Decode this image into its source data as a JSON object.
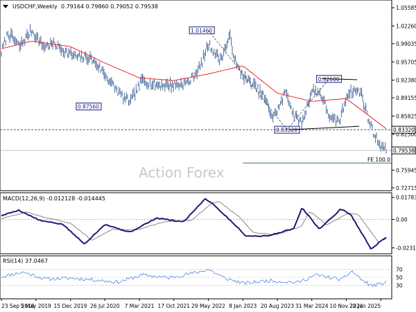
{
  "header": {
    "symbol_label": "USDCHF,Weekly",
    "ohlc_text": "0.79164 0.79860 0.79052 0.79538"
  },
  "watermark": "Action Forex",
  "colors": {
    "bars": "#4a6a9a",
    "ma": "#e8282a",
    "macd_line": "#1a1a7a",
    "macd_signal": "#888888",
    "rsi": "#4a86e8",
    "annotation": "#1a1a7a",
    "fib": "#3b6b6b"
  },
  "chart_data": [
    {
      "type": "line",
      "panel": "price",
      "title": "USDCHF,Weekly",
      "y_ticks": [
        "1.05585",
        "1.02260",
        "0.99035",
        "0.95705",
        "0.92380",
        "0.89155",
        "0.85825",
        "0.82500",
        "0.79595",
        "0.75945",
        "0.72715"
      ],
      "ylim": [
        0.7245,
        1.0675
      ],
      "current_price": "0.79538",
      "x_ticks": [
        "23 Sep 2018",
        "5 May 2019",
        "15 Dec 2019",
        "26 Jul 2020",
        "7 Mar 2021",
        "17 Oct 2021",
        "29 May 2022",
        "8 Jan 2023",
        "20 Aug 2023",
        "31 Mar 2024",
        "10 Nov 2024",
        "22 Jun 2025"
      ],
      "series": [
        {
          "style": "bars",
          "x": [
            "2018-09-23",
            "2018-11-04",
            "2019-01-20",
            "2019-04-07",
            "2019-06-23",
            "2019-09-01",
            "2019-11-17",
            "2020-02-02",
            "2020-04-19",
            "2020-06-28",
            "2020-09-13",
            "2020-11-29",
            "2021-01-10",
            "2021-03-28",
            "2021-06-06",
            "2021-08-22",
            "2021-11-07",
            "2022-01-23",
            "2022-04-10",
            "2022-05-29",
            "2022-08-14",
            "2022-10-16",
            "2022-11-27",
            "2023-01-29",
            "2023-03-19",
            "2023-05-21",
            "2023-07-23",
            "2023-09-10",
            "2023-10-15",
            "2023-12-03",
            "2024-01-28",
            "2024-03-31",
            "2024-05-26",
            "2024-08-04",
            "2024-09-29",
            "2024-11-17",
            "2025-01-05",
            "2025-02-16",
            "2025-03-30",
            "2025-05-18",
            "2025-06-22",
            "2025-07-27"
          ],
          "values": [
            0.975,
            1.01,
            0.985,
            1.015,
            0.985,
            0.99,
            0.975,
            0.965,
            0.965,
            0.945,
            0.915,
            0.89,
            0.885,
            0.925,
            0.915,
            0.915,
            0.915,
            0.92,
            0.95,
            0.99,
            0.96,
            1.003,
            0.95,
            0.925,
            0.915,
            0.895,
            0.855,
            0.88,
            0.905,
            0.86,
            0.845,
            0.905,
            0.9,
            0.85,
            0.85,
            0.9,
            0.905,
            0.9,
            0.855,
            0.82,
            0.805,
            0.795
          ]
        },
        {
          "style": "line",
          "x": [
            "2018-09-23",
            "2019-04-07",
            "2019-12-15",
            "2020-07-26",
            "2021-03-07",
            "2021-10-17",
            "2022-05-29",
            "2023-01-08",
            "2023-08-20",
            "2024-03-31",
            "2024-11-10",
            "2025-07-27"
          ],
          "values": [
            0.981,
            0.995,
            0.985,
            0.955,
            0.928,
            0.923,
            0.935,
            0.95,
            0.9,
            0.885,
            0.89,
            0.835
          ]
        }
      ],
      "annotations": [
        {
          "type": "price_label",
          "text": "1.01460",
          "x": "2022-04-17",
          "y": 1.0146
        },
        {
          "type": "price_label",
          "text": "0.87560",
          "x": "2020-04-12",
          "y": 0.8756
        },
        {
          "type": "price_label",
          "text": "0.83320",
          "x": "2023-10-22",
          "y": 0.8332
        },
        {
          "type": "price_label",
          "text": "0.92600",
          "x": "2024-07-21",
          "y": 0.926
        },
        {
          "type": "horizontal_level",
          "text": "0.83320",
          "y": 0.8332
        },
        {
          "type": "fib_label",
          "text": "FE 100.0",
          "y": 0.7725
        }
      ]
    },
    {
      "type": "line",
      "panel": "macd",
      "title": "MACD(12,26,9) -0.012128 -0.014445",
      "y_ticks": [
        "0.017833",
        "0.00",
        "-0.023159"
      ],
      "ylim": [
        -0.0268,
        0.0205
      ],
      "series": [
        {
          "style": "line",
          "x": [
            "2018-09-23",
            "2019-01-13",
            "2019-06-02",
            "2019-10-27",
            "2020-03-15",
            "2020-07-26",
            "2021-01-03",
            "2021-06-27",
            "2021-12-19",
            "2022-05-08",
            "2022-06-19",
            "2022-11-06",
            "2023-01-29",
            "2023-06-18",
            "2023-12-03",
            "2024-01-28",
            "2024-05-19",
            "2024-10-06",
            "2024-12-08",
            "2025-04-20",
            "2025-07-27"
          ],
          "values": [
            0.003,
            0.0075,
            -0.001,
            -0.004,
            -0.02,
            -0.004,
            -0.0105,
            0.001,
            -0.002,
            0.0168,
            0.0135,
            -0.003,
            -0.0135,
            -0.0135,
            -0.0075,
            0.0095,
            -0.008,
            0.0085,
            0.004,
            -0.024,
            -0.0145
          ]
        },
        {
          "style": "line",
          "x": [
            "2018-09-23",
            "2019-03-03",
            "2019-07-21",
            "2019-12-15",
            "2020-05-03",
            "2020-09-13",
            "2021-02-21",
            "2021-08-15",
            "2022-02-06",
            "2022-06-26",
            "2022-08-07",
            "2022-12-25",
            "2023-03-19",
            "2023-08-06",
            "2024-01-21",
            "2024-03-17",
            "2024-07-07",
            "2024-11-24",
            "2025-01-26",
            "2025-06-08",
            "2025-07-27"
          ],
          "values": [
            0.0005,
            0.006,
            0.001,
            -0.003,
            -0.017,
            -0.008,
            -0.0085,
            -0.002,
            -0.001,
            0.0135,
            0.0145,
            0.001,
            -0.011,
            -0.0125,
            -0.006,
            0.0065,
            -0.0045,
            0.005,
            0.004,
            -0.0185,
            -0.0155
          ]
        }
      ]
    },
    {
      "type": "line",
      "panel": "rsi",
      "title": "RSI(14) 37.0467",
      "y_ticks": [
        "70",
        "50",
        "30"
      ],
      "ylim": [
        0,
        100
      ],
      "series": [
        {
          "style": "line",
          "x": [
            "2018-09-23",
            "2019-02-10",
            "2019-07-07",
            "2019-12-22",
            "2020-05-17",
            "2020-10-18",
            "2021-03-28",
            "2021-09-12",
            "2022-03-13",
            "2022-05-29",
            "2022-09-11",
            "2023-01-15",
            "2023-06-25",
            "2023-12-31",
            "2024-04-28",
            "2024-10-13",
            "2024-12-15",
            "2025-03-02",
            "2025-04-27",
            "2025-07-27"
          ],
          "values": [
            52,
            63,
            46,
            48,
            44,
            38,
            56,
            49,
            62,
            70,
            48,
            35,
            42,
            37,
            56,
            44,
            66,
            40,
            29,
            37
          ]
        }
      ]
    }
  ]
}
